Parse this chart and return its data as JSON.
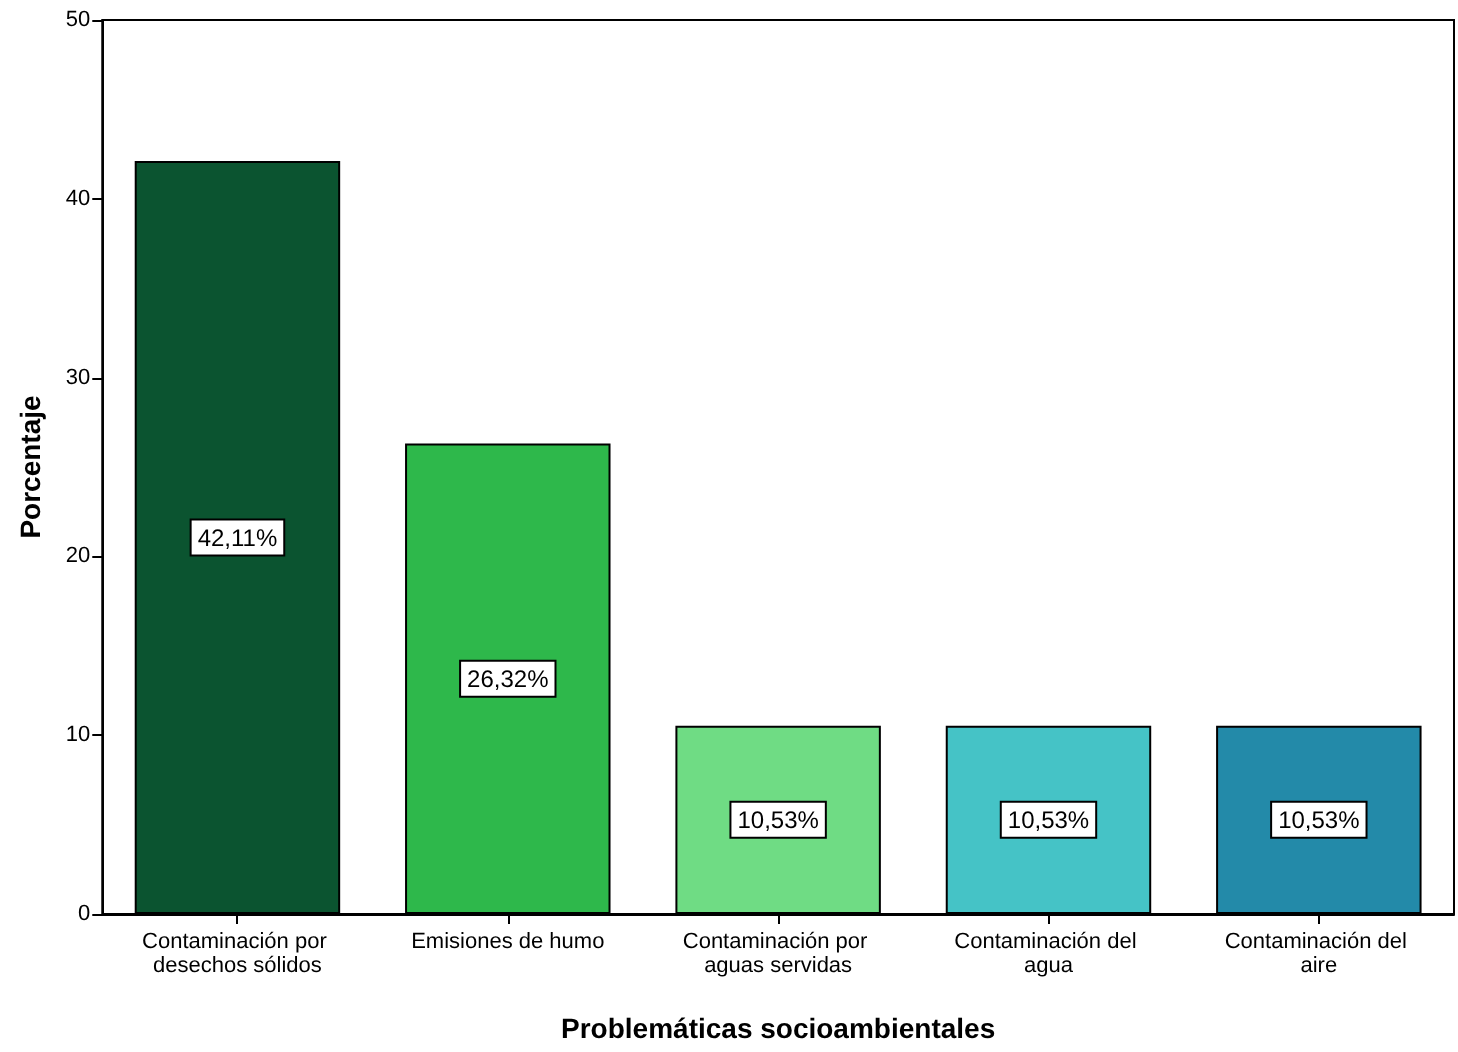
{
  "chart_data": {
    "type": "bar",
    "xlabel": "Problemáticas socioambientales",
    "ylabel": "Porcentaje",
    "categories": [
      "Contaminación por desechos sólidos",
      "Emisiones de humo",
      "Contaminación por aguas servidas",
      "Contaminación del agua",
      "Contaminación del aire"
    ],
    "values": [
      42.11,
      26.32,
      10.53,
      10.53,
      10.53
    ],
    "value_labels": [
      "42,11%",
      "26,32%",
      "10,53%",
      "10,53%",
      "10,53%"
    ],
    "colors": [
      "#0b5430",
      "#2eb84b",
      "#6fdc84",
      "#45c3c6",
      "#238aa9"
    ],
    "ylim": [
      0,
      50
    ],
    "yticks": [
      0,
      10,
      20,
      30,
      40,
      50
    ],
    "grid": false
  }
}
